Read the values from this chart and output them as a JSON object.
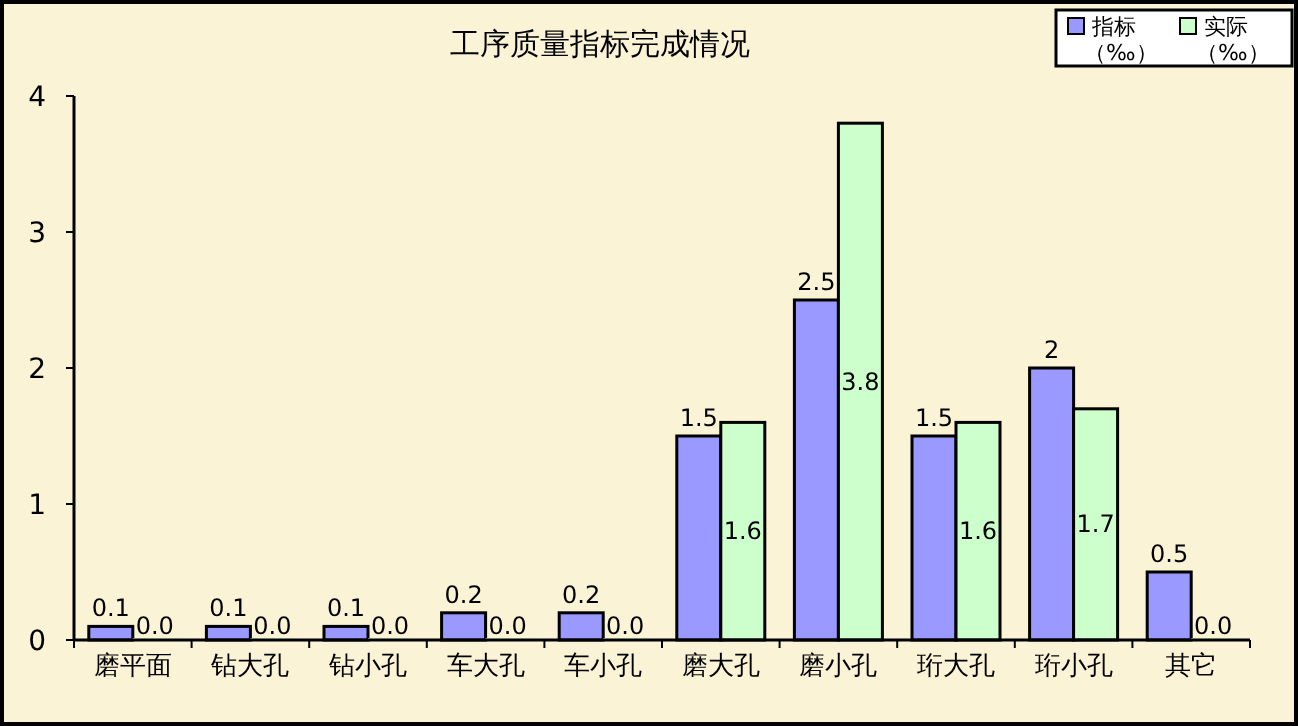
{
  "chart_data": {
    "type": "bar",
    "title": "工序质量指标完成情况",
    "categories": [
      "磨平面",
      "钻大孔",
      "钻小孔",
      "车大孔",
      "车小孔",
      "磨大孔",
      "磨小孔",
      "珩大孔",
      "珩小孔",
      "其它"
    ],
    "series": [
      {
        "name": "指标（‰）",
        "color": "#9999ff",
        "values": [
          0.1,
          0.1,
          0.1,
          0.2,
          0.2,
          1.5,
          2.5,
          1.5,
          2,
          0.5
        ],
        "value_labels": [
          "0.1",
          "0.1",
          "0.1",
          "0.2",
          "0.2",
          "1.5",
          "2.5",
          "1.5",
          "2",
          "0.5"
        ]
      },
      {
        "name": "实际（‰）",
        "color": "#ccffcc",
        "values": [
          0,
          0,
          0,
          0,
          0,
          1.6,
          3.8,
          1.6,
          1.7,
          0
        ],
        "value_labels": [
          "0.0",
          "0.0",
          "0.0",
          "0.0",
          "0.0",
          "1.6",
          "3.8",
          "1.6",
          "1.7",
          "0.0"
        ]
      }
    ],
    "ylim": [
      0,
      4
    ],
    "yticks": [
      0,
      1,
      2,
      3,
      4
    ],
    "grid": false,
    "legend": "top right"
  }
}
